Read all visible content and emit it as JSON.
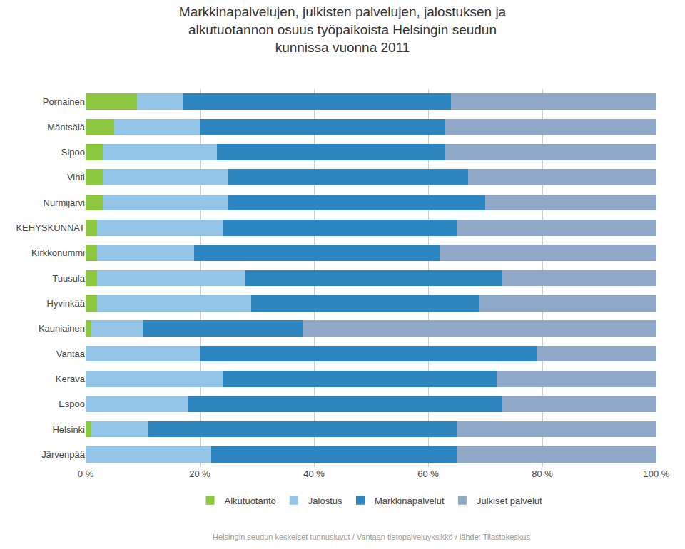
{
  "chart_data": {
    "type": "bar",
    "orientation": "horizontal",
    "stacked": true,
    "title": "Markkinapalvelujen, julkisten palvelujen, jalostuksen ja\nalkutuotannon osuus työpaikoista Helsingin seudun\nkunnissa vuonna 2011",
    "categories": [
      "Pornainen",
      "Mäntsälä",
      "Sipoo",
      "Vihti",
      "Nurmijärvi",
      "KEHYSKUNNAT",
      "Kirkkonummi",
      "Tuusula",
      "Hyvinkää",
      "Kauniainen",
      "Vantaa",
      "Kerava",
      "Espoo",
      "Helsinki",
      "Järvenpää"
    ],
    "series": [
      {
        "name": "Alkutuotanto",
        "color": "#8DC63F",
        "values": [
          9,
          5,
          3,
          3,
          3,
          2,
          2,
          2,
          2,
          1,
          0,
          0,
          0,
          1,
          0
        ]
      },
      {
        "name": "Jalostus",
        "color": "#92C5E8",
        "values": [
          8,
          15,
          20,
          22,
          22,
          22,
          17,
          26,
          27,
          9,
          20,
          24,
          18,
          10,
          22
        ]
      },
      {
        "name": "Markkinapalvelut",
        "color": "#2E86C1",
        "values": [
          47,
          43,
          40,
          42,
          45,
          41,
          43,
          45,
          40,
          28,
          59,
          48,
          55,
          54,
          43
        ]
      },
      {
        "name": "Julkiset palvelut",
        "color": "#8FA8C8",
        "values": [
          36,
          37,
          37,
          33,
          30,
          35,
          38,
          27,
          31,
          62,
          21,
          28,
          27,
          35,
          35
        ]
      }
    ],
    "xlim": [
      0,
      100
    ],
    "xticks": [
      {
        "value": 0,
        "label": "0 %"
      },
      {
        "value": 20,
        "label": "20 %"
      },
      {
        "value": 40,
        "label": "40 %"
      },
      {
        "value": 60,
        "label": "60 %"
      },
      {
        "value": 80,
        "label": "80 %"
      },
      {
        "value": 100,
        "label": "100 %"
      }
    ],
    "grid": true,
    "legend": "bottom",
    "annotations": [
      "Helsingin seudun keskeiset tunnusluvut / Vantaan tietopalveluyksikkö / lähde: Tilastokeskus"
    ]
  }
}
